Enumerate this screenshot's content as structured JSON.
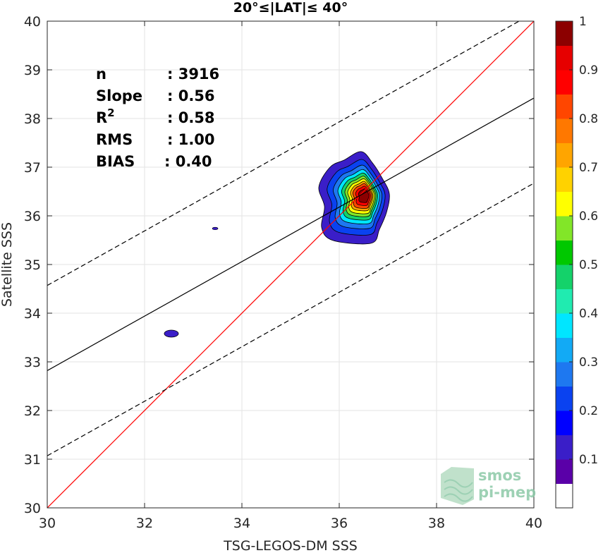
{
  "chart_data": {
    "type": "contour-density-scatter",
    "title": "20°≤|LAT|≤ 40°",
    "xlabel": "TSG-LEGOS-DM SSS",
    "ylabel": "Satellite SSS",
    "xlim": [
      30,
      40
    ],
    "ylim": [
      30,
      40
    ],
    "xticks": [
      "30",
      "32",
      "34",
      "36",
      "38",
      "40"
    ],
    "yticks": [
      "30",
      "31",
      "32",
      "33",
      "34",
      "35",
      "36",
      "37",
      "38",
      "39",
      "40"
    ],
    "grid": true,
    "stats": [
      {
        "label": "n",
        "value": ": 3916"
      },
      {
        "label": "Slope",
        "value": ": 0.56"
      },
      {
        "label": "R",
        "sup": "2",
        "value": ": 0.58"
      },
      {
        "label": "RMS",
        "value": ": 1.00"
      },
      {
        "label": "BIAS",
        "value": ": 0.40"
      }
    ],
    "lines": {
      "identity": {
        "x": [
          30,
          40
        ],
        "y": [
          30,
          40
        ],
        "color": "#ff0000"
      },
      "fit": {
        "x": [
          30,
          40
        ],
        "y": [
          32.82,
          38.42
        ],
        "color": "#000000"
      },
      "fit_upper": {
        "x": [
          30,
          40
        ],
        "y": [
          34.57,
          40.17
        ],
        "color": "#000000",
        "dash": true
      },
      "fit_lower": {
        "x": [
          30,
          40
        ],
        "y": [
          31.07,
          36.67
        ],
        "color": "#000000",
        "dash": true
      }
    },
    "density_peak": {
      "x": 36.45,
      "y": 36.48
    },
    "outliers": [
      {
        "x": 32.55,
        "y": 33.58
      },
      {
        "x": 33.45,
        "y": 35.74
      }
    ],
    "colorbar": {
      "min": 0,
      "max": 1,
      "ticks": [
        "0.1",
        "0.2",
        "0.3",
        "0.4",
        "0.5",
        "0.6",
        "0.7",
        "0.8",
        "0.9",
        "1"
      ],
      "colors": [
        "#ffffff",
        "#5a00a8",
        "#3a1ec8",
        "#0000ff",
        "#0a42f0",
        "#1e78f0",
        "#12aaf5",
        "#00e6ff",
        "#20ebb0",
        "#14d26a",
        "#00c800",
        "#82e628",
        "#ffff00",
        "#ffd200",
        "#ffa500",
        "#ff7800",
        "#ff4600",
        "#ff0000",
        "#e60000",
        "#8c0000"
      ]
    }
  },
  "watermark": {
    "line1": "smos",
    "line2": "pi-mep"
  }
}
